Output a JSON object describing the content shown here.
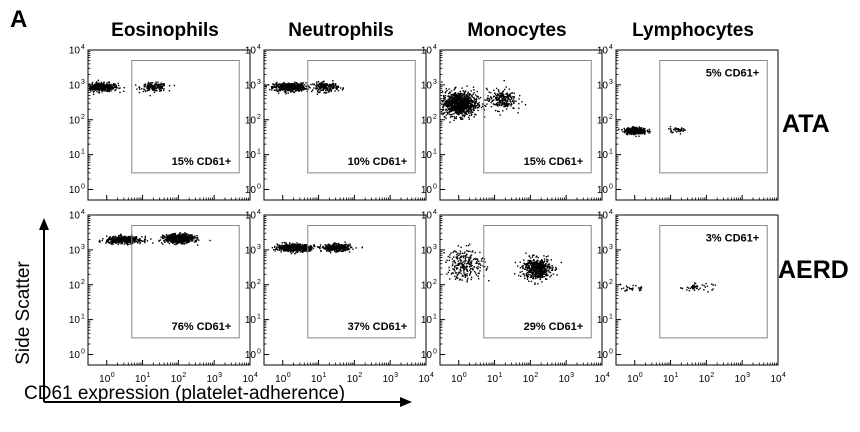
{
  "panel_letter": "A",
  "chart_data": {
    "type": "scatter",
    "columns": [
      "Eosinophils",
      "Neutrophils",
      "Monocytes",
      "Lymphocytes"
    ],
    "rows": [
      "ATA",
      "AERD"
    ],
    "x_axis": {
      "label": "CD61 expression (platelet-adherence)",
      "scale": "log",
      "range": [
        0.3,
        10000
      ],
      "ticks": [
        1,
        10,
        100,
        1000,
        10000
      ],
      "tick_labels": [
        "10",
        "10",
        "10",
        "10",
        "10"
      ],
      "tick_exponents": [
        "0",
        "1",
        "2",
        "3",
        "4"
      ]
    },
    "y_axis": {
      "label": "Side Scatter",
      "scale": "log",
      "range": [
        0.5,
        10000
      ],
      "ticks": [
        1,
        10,
        100,
        1000,
        10000
      ],
      "tick_labels": [
        "10",
        "10",
        "10",
        "10",
        "10"
      ],
      "tick_exponents": [
        "0",
        "1",
        "2",
        "3",
        "4"
      ]
    },
    "gate": {
      "x_range": [
        5,
        5000
      ],
      "y_range": [
        3,
        5000
      ]
    },
    "panels": [
      {
        "row": "ATA",
        "column": "Eosinophils",
        "gate_label": "15% CD61+",
        "gate_label_position": "bottom",
        "clusters": [
          {
            "x_center": 0.7,
            "x_spread": 0.5,
            "y_center": 900,
            "y_spread": 0.12,
            "n": 380
          },
          {
            "x_center": 20,
            "x_spread": 0.4,
            "y_center": 900,
            "y_spread": 0.12,
            "n": 160
          }
        ]
      },
      {
        "row": "ATA",
        "column": "Neutrophils",
        "gate_label": "10% CD61+",
        "gate_label_position": "bottom",
        "clusters": [
          {
            "x_center": 1.5,
            "x_spread": 0.5,
            "y_center": 900,
            "y_spread": 0.12,
            "n": 520
          },
          {
            "x_center": 15,
            "x_spread": 0.4,
            "y_center": 900,
            "y_spread": 0.14,
            "n": 180
          }
        ]
      },
      {
        "row": "ATA",
        "column": "Monocytes",
        "gate_label": "15% CD61+",
        "gate_label_position": "bottom",
        "clusters": [
          {
            "x_center": 1,
            "x_spread": 0.55,
            "y_center": 300,
            "y_spread": 0.35,
            "n": 900
          },
          {
            "x_center": 15,
            "x_spread": 0.45,
            "y_center": 400,
            "y_spread": 0.3,
            "n": 220
          }
        ]
      },
      {
        "row": "ATA",
        "column": "Lymphocytes",
        "gate_label": "5% CD61+",
        "gate_label_position": "top",
        "clusters": [
          {
            "x_center": 1,
            "x_spread": 0.35,
            "y_center": 50,
            "y_spread": 0.1,
            "n": 300
          },
          {
            "x_center": 15,
            "x_spread": 0.3,
            "y_center": 55,
            "y_spread": 0.08,
            "n": 40
          }
        ]
      },
      {
        "row": "AERD",
        "column": "Eosinophils",
        "gate_label": "76% CD61+",
        "gate_label_position": "bottom",
        "clusters": [
          {
            "x_center": 3,
            "x_spread": 0.55,
            "y_center": 2000,
            "y_spread": 0.1,
            "n": 450
          },
          {
            "x_center": 100,
            "x_spread": 0.45,
            "y_center": 2200,
            "y_spread": 0.12,
            "n": 700
          }
        ]
      },
      {
        "row": "AERD",
        "column": "Neutrophils",
        "gate_label": "37% CD61+",
        "gate_label_position": "bottom",
        "clusters": [
          {
            "x_center": 2,
            "x_spread": 0.5,
            "y_center": 1200,
            "y_spread": 0.1,
            "n": 700
          },
          {
            "x_center": 30,
            "x_spread": 0.45,
            "y_center": 1200,
            "y_spread": 0.1,
            "n": 350
          }
        ]
      },
      {
        "row": "AERD",
        "column": "Monocytes",
        "gate_label": "29% CD61+",
        "gate_label_position": "bottom",
        "clusters": [
          {
            "x_center": 1.5,
            "x_spread": 0.6,
            "y_center": 400,
            "y_spread": 0.45,
            "n": 250
          },
          {
            "x_center": 150,
            "x_spread": 0.45,
            "y_center": 300,
            "y_spread": 0.3,
            "n": 500
          }
        ]
      },
      {
        "row": "AERD",
        "column": "Lymphocytes",
        "gate_label": "3% CD61+",
        "gate_label_position": "top",
        "clusters": [
          {
            "x_center": 0.8,
            "x_spread": 0.3,
            "y_center": 80,
            "y_spread": 0.08,
            "n": 30
          },
          {
            "x_center": 50,
            "x_spread": 0.5,
            "y_center": 90,
            "y_spread": 0.1,
            "n": 45
          }
        ]
      }
    ]
  }
}
